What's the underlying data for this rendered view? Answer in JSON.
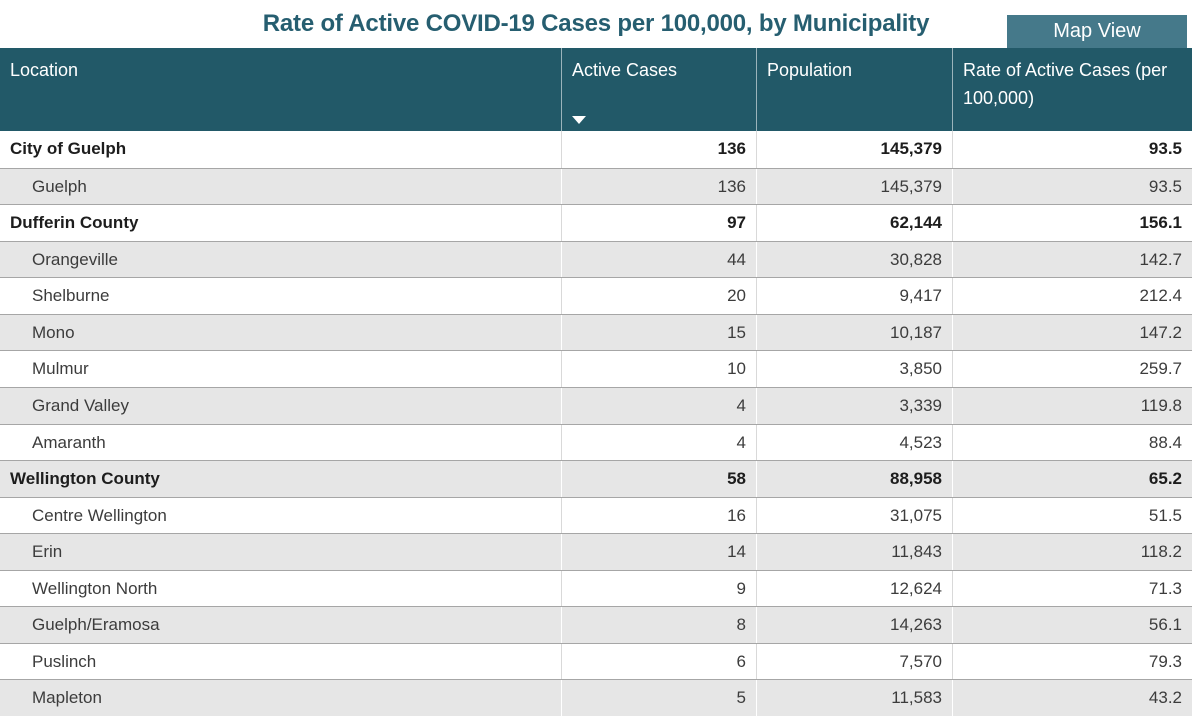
{
  "title": "Rate of Active COVID-19 Cases per 100,000, by Municipality",
  "map_view_button": "Map View",
  "colors": {
    "title_text": "#265e70",
    "header_bg": "#225968",
    "button_bg": "#45798a",
    "button_text": "#ffffff",
    "shaded_row_bg": "#e6e6e6",
    "row_border": "#a6a6a6",
    "body_text": "#252423"
  },
  "sort": {
    "column": "Active Cases",
    "direction": "descending"
  },
  "table": {
    "columns": [
      {
        "label": "Location"
      },
      {
        "label": "Active Cases"
      },
      {
        "label": "Population"
      },
      {
        "label": "Rate of Active Cases (per 100,000)"
      }
    ],
    "rows": [
      {
        "location": "City of Guelph",
        "active_cases": "136",
        "population": "145,379",
        "rate": "93.5",
        "bold": true,
        "indent": false,
        "shaded": false
      },
      {
        "location": "Guelph",
        "active_cases": "136",
        "population": "145,379",
        "rate": "93.5",
        "bold": false,
        "indent": true,
        "shaded": true
      },
      {
        "location": "Dufferin County",
        "active_cases": "97",
        "population": "62,144",
        "rate": "156.1",
        "bold": true,
        "indent": false,
        "shaded": false
      },
      {
        "location": "Orangeville",
        "active_cases": "44",
        "population": "30,828",
        "rate": "142.7",
        "bold": false,
        "indent": true,
        "shaded": true
      },
      {
        "location": "Shelburne",
        "active_cases": "20",
        "population": "9,417",
        "rate": "212.4",
        "bold": false,
        "indent": true,
        "shaded": false
      },
      {
        "location": "Mono",
        "active_cases": "15",
        "population": "10,187",
        "rate": "147.2",
        "bold": false,
        "indent": true,
        "shaded": true
      },
      {
        "location": "Mulmur",
        "active_cases": "10",
        "population": "3,850",
        "rate": "259.7",
        "bold": false,
        "indent": true,
        "shaded": false
      },
      {
        "location": "Grand Valley",
        "active_cases": "4",
        "population": "3,339",
        "rate": "119.8",
        "bold": false,
        "indent": true,
        "shaded": true
      },
      {
        "location": "Amaranth",
        "active_cases": "4",
        "population": "4,523",
        "rate": "88.4",
        "bold": false,
        "indent": true,
        "shaded": false
      },
      {
        "location": "Wellington County",
        "active_cases": "58",
        "population": "88,958",
        "rate": "65.2",
        "bold": true,
        "indent": false,
        "shaded": true
      },
      {
        "location": "Centre Wellington",
        "active_cases": "16",
        "population": "31,075",
        "rate": "51.5",
        "bold": false,
        "indent": true,
        "shaded": false
      },
      {
        "location": "Erin",
        "active_cases": "14",
        "population": "11,843",
        "rate": "118.2",
        "bold": false,
        "indent": true,
        "shaded": true
      },
      {
        "location": "Wellington North",
        "active_cases": "9",
        "population": "12,624",
        "rate": "71.3",
        "bold": false,
        "indent": true,
        "shaded": false
      },
      {
        "location": "Guelph/Eramosa",
        "active_cases": "8",
        "population": "14,263",
        "rate": "56.1",
        "bold": false,
        "indent": true,
        "shaded": true
      },
      {
        "location": "Puslinch",
        "active_cases": "6",
        "population": "7,570",
        "rate": "79.3",
        "bold": false,
        "indent": true,
        "shaded": false
      },
      {
        "location": "Mapleton",
        "active_cases": "5",
        "population": "11,583",
        "rate": "43.2",
        "bold": false,
        "indent": true,
        "shaded": true
      }
    ]
  }
}
